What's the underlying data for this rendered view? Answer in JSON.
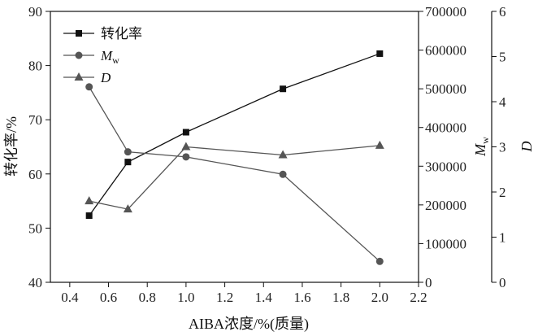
{
  "chart_data": {
    "type": "line",
    "x": [
      0.5,
      0.7,
      1.0,
      1.5,
      2.0
    ],
    "xlabel": "AIBA浓度/%(质量)",
    "xlim": [
      0.3,
      2.2
    ],
    "xticks": [
      "0.4",
      "0.6",
      "0.8",
      "1.0",
      "1.2",
      "1.4",
      "1.6",
      "1.8",
      "2.0",
      "2.2"
    ],
    "xtick_values": [
      0.4,
      0.6,
      0.8,
      1.0,
      1.2,
      1.4,
      1.6,
      1.8,
      2.0,
      2.2
    ],
    "axes": {
      "left": {
        "label": "转化率/%",
        "lim": [
          40,
          90
        ],
        "ticks": [
          "40",
          "50",
          "60",
          "70",
          "80",
          "90"
        ],
        "tick_values": [
          40,
          50,
          60,
          70,
          80,
          90
        ]
      },
      "right1": {
        "label": "M",
        "label_sub": "w",
        "lim": [
          0,
          700000
        ],
        "ticks": [
          "0",
          "100000",
          "200000",
          "300000",
          "400000",
          "500000",
          "600000",
          "700000"
        ],
        "tick_values": [
          0,
          100000,
          200000,
          300000,
          400000,
          500000,
          600000,
          700000
        ]
      },
      "right2": {
        "label": "D",
        "lim": [
          0,
          6
        ],
        "ticks": [
          "0",
          "1",
          "2",
          "3",
          "4",
          "5",
          "6"
        ],
        "tick_values": [
          0,
          1,
          2,
          3,
          4,
          5,
          6
        ]
      }
    },
    "series": [
      {
        "name": "转化率",
        "axis": "left",
        "marker": "square",
        "color": "#111111",
        "values": [
          52.3,
          62.2,
          67.7,
          75.7,
          82.2
        ]
      },
      {
        "name": "M",
        "name_sub": "w",
        "axis": "right1",
        "marker": "circle",
        "color": "#555555",
        "values": [
          505000,
          337000,
          324000,
          279000,
          54000
        ]
      },
      {
        "name": "D",
        "axis": "right2",
        "marker": "triangle",
        "color": "#555555",
        "values": [
          1.8,
          1.62,
          3.0,
          2.82,
          3.03
        ]
      }
    ],
    "legend": "top-left",
    "grid": false
  }
}
